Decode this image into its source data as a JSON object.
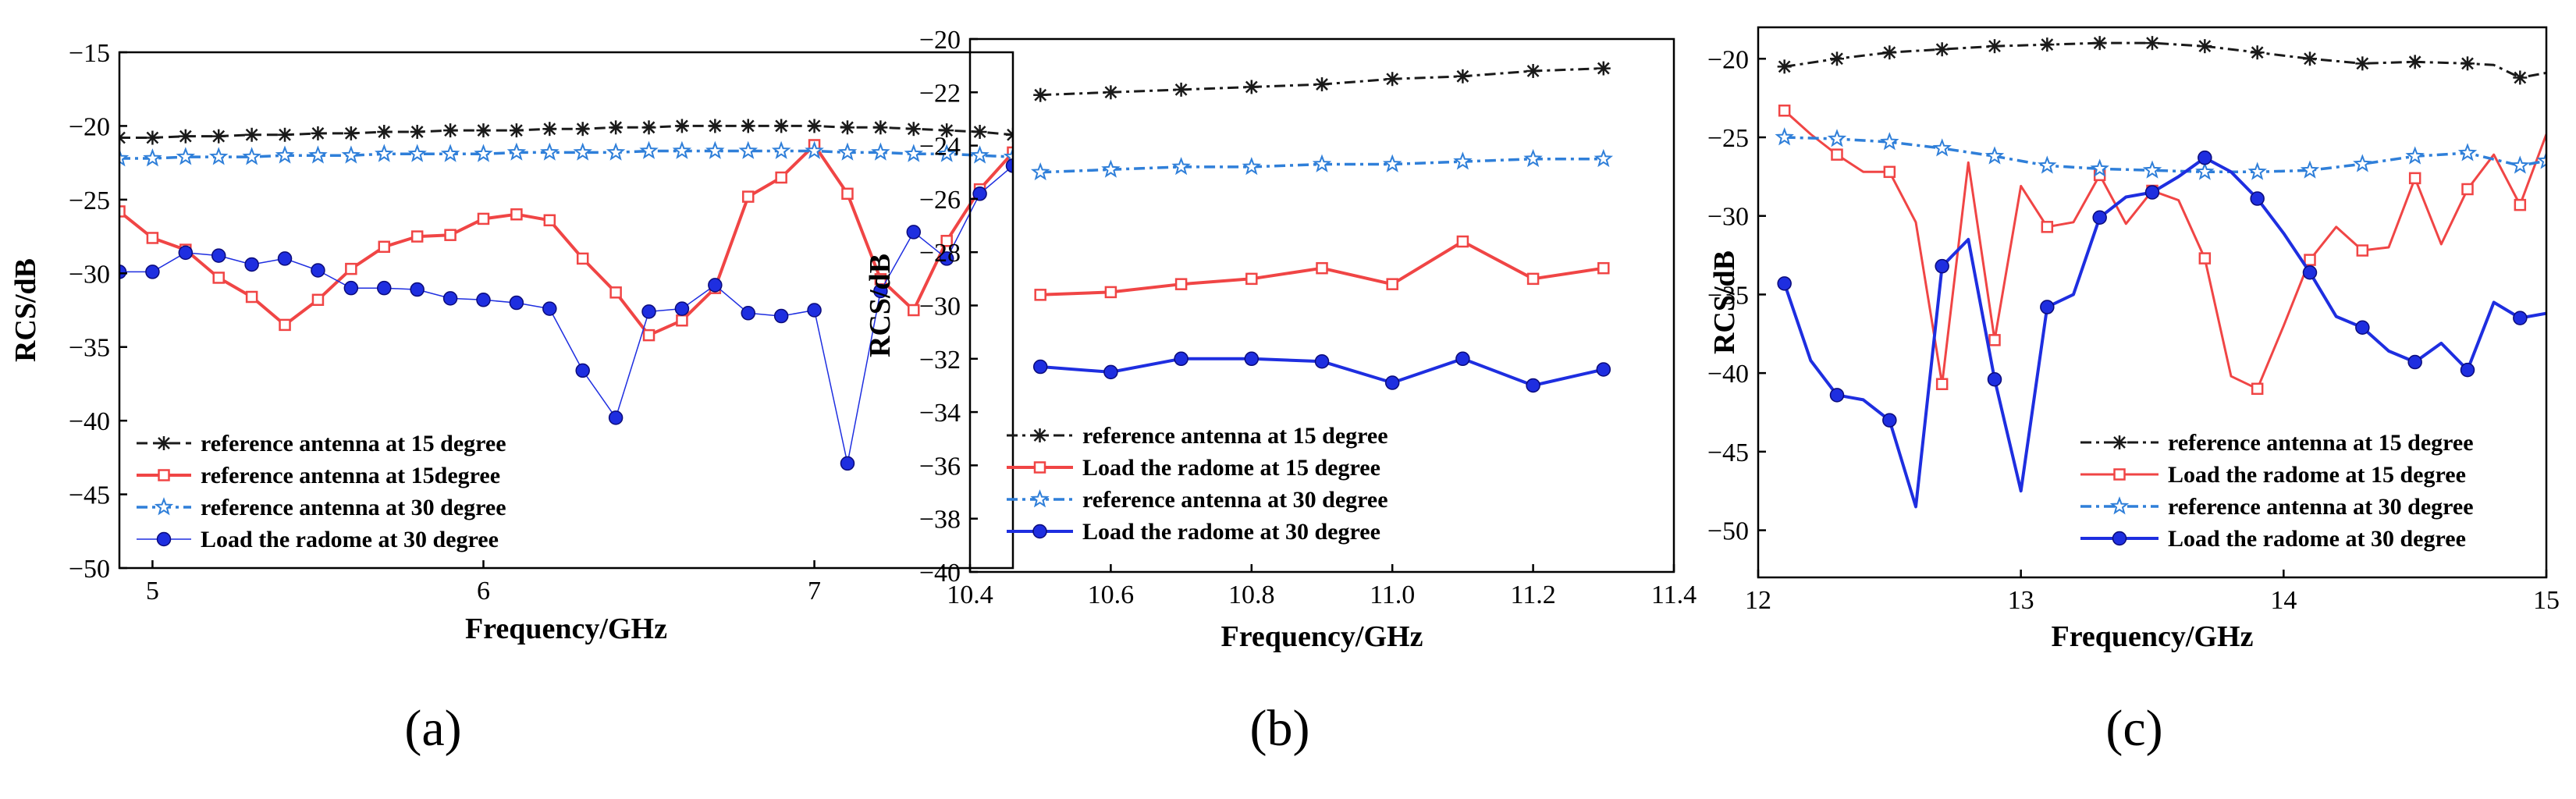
{
  "figure": {
    "panel_labels": [
      "(a)",
      "(b)",
      "(c)"
    ],
    "colors": {
      "ref15": "#1a1a1a",
      "load15": "#f04545",
      "ref30": "#2f7fd9",
      "load30": "#1e2ee0"
    }
  },
  "chart_data": [
    {
      "type": "line",
      "panel": "(a)",
      "xlabel": "Frequency/GHz",
      "ylabel": "RCS/dB",
      "xlim": [
        4.9,
        7.6
      ],
      "ylim": [
        -50,
        -15
      ],
      "xticks": [
        5,
        6,
        7
      ],
      "xtick_labels": [
        "5",
        "6",
        "7"
      ],
      "yticks": [
        -50,
        -45,
        -40,
        -35,
        -30,
        -25,
        -20,
        -15
      ],
      "ytick_labels": [
        "−50",
        "−45",
        "−40",
        "−35",
        "−30",
        "−25",
        "−20",
        "−15"
      ],
      "legend_position": "bottom-left",
      "series": [
        {
          "name": "reference antenna at 15 degree",
          "style": "ref15",
          "x": [
            4.9,
            5.0,
            5.1,
            5.2,
            5.3,
            5.4,
            5.5,
            5.6,
            5.7,
            5.8,
            5.9,
            6.0,
            6.1,
            6.2,
            6.3,
            6.4,
            6.5,
            6.6,
            6.7,
            6.8,
            6.9,
            7.0,
            7.1,
            7.2,
            7.3,
            7.4,
            7.5,
            7.6
          ],
          "y": [
            -20.8,
            -20.8,
            -20.7,
            -20.7,
            -20.6,
            -20.6,
            -20.5,
            -20.5,
            -20.4,
            -20.4,
            -20.3,
            -20.3,
            -20.3,
            -20.2,
            -20.2,
            -20.1,
            -20.1,
            -20.0,
            -20.0,
            -20.0,
            -20.0,
            -20.0,
            -20.1,
            -20.1,
            -20.2,
            -20.3,
            -20.4,
            -20.6
          ]
        },
        {
          "name": "reference antenna at 15degree",
          "style": "load15",
          "x": [
            4.9,
            5.0,
            5.1,
            5.2,
            5.3,
            5.4,
            5.5,
            5.6,
            5.7,
            5.8,
            5.9,
            6.0,
            6.1,
            6.2,
            6.3,
            6.4,
            6.5,
            6.6,
            6.7,
            6.8,
            6.9,
            7.0,
            7.1,
            7.2,
            7.3,
            7.4,
            7.5,
            7.6
          ],
          "y": [
            -25.8,
            -27.6,
            -28.4,
            -30.3,
            -31.6,
            -33.5,
            -31.8,
            -29.7,
            -28.2,
            -27.5,
            -27.4,
            -26.3,
            -26.0,
            -26.4,
            -29.0,
            -31.3,
            -34.2,
            -33.2,
            -31.0,
            -24.8,
            -23.5,
            -21.3,
            -24.6,
            -30.4,
            -32.5,
            -27.8,
            -24.3,
            -21.8
          ]
        },
        {
          "name": "reference antenna at 30 degree",
          "style": "ref30",
          "x": [
            4.9,
            5.0,
            5.1,
            5.2,
            5.3,
            5.4,
            5.5,
            5.6,
            5.7,
            5.8,
            5.9,
            6.0,
            6.1,
            6.2,
            6.3,
            6.4,
            6.5,
            6.6,
            6.7,
            6.8,
            6.9,
            7.0,
            7.1,
            7.2,
            7.3,
            7.4,
            7.5,
            7.6
          ],
          "y": [
            -22.2,
            -22.2,
            -22.1,
            -22.1,
            -22.1,
            -22.0,
            -22.0,
            -22.0,
            -21.9,
            -21.9,
            -21.9,
            -21.9,
            -21.8,
            -21.8,
            -21.8,
            -21.8,
            -21.7,
            -21.7,
            -21.7,
            -21.7,
            -21.7,
            -21.7,
            -21.8,
            -21.8,
            -21.9,
            -21.9,
            -22.0,
            -22.1
          ]
        },
        {
          "name": "Load the radome at 30 degree",
          "style": "load30",
          "x": [
            4.9,
            5.0,
            5.1,
            5.2,
            5.3,
            5.4,
            5.5,
            5.6,
            5.7,
            5.8,
            5.9,
            6.0,
            6.1,
            6.2,
            6.3,
            6.4,
            6.5,
            6.6,
            6.7,
            6.8,
            6.9,
            7.0,
            7.1,
            7.2,
            7.3,
            7.4,
            7.5,
            7.6
          ],
          "y": [
            -29.9,
            -29.9,
            -28.6,
            -28.8,
            -29.4,
            -29.0,
            -29.8,
            -31.0,
            -31.0,
            -31.1,
            -31.7,
            -31.8,
            -32.0,
            -32.4,
            -36.6,
            -39.8,
            -32.6,
            -32.4,
            -30.8,
            -32.7,
            -32.9,
            -32.5,
            -42.9,
            -31.2,
            -27.2,
            -29.0,
            -24.6,
            -22.7
          ]
        }
      ]
    },
    {
      "type": "line",
      "panel": "(b)",
      "xlabel": "Frequency/GHz",
      "ylabel": "RCS/dB",
      "xlim": [
        10.4,
        11.4
      ],
      "ylim": [
        -40,
        -20
      ],
      "xticks": [
        10.4,
        10.6,
        10.8,
        11.0,
        11.2,
        11.4
      ],
      "xtick_labels": [
        "10.4",
        "10.6",
        "10.8",
        "11.0",
        "11.2",
        "11.4"
      ],
      "yticks": [
        -40,
        -38,
        -36,
        -34,
        -32,
        -30,
        -28,
        -26,
        -24,
        -22,
        -20
      ],
      "ytick_labels": [
        "−40",
        "−38",
        "−36",
        "−34",
        "−32",
        "−30",
        "−28",
        "−26",
        "−24",
        "−22",
        "−20"
      ],
      "legend_position": "bottom-left",
      "series": [
        {
          "name": "reference antenna at 15 degree",
          "style": "ref15",
          "x": [
            10.5,
            10.6,
            10.7,
            10.8,
            10.9,
            11.0,
            11.1,
            11.2,
            11.3
          ],
          "y": [
            -22.1,
            -22.0,
            -21.9,
            -21.8,
            -21.7,
            -21.5,
            -21.4,
            -21.2,
            -21.1
          ]
        },
        {
          "name": "Load the radome at 15 degree",
          "style": "load15",
          "x": [
            10.5,
            10.6,
            10.7,
            10.8,
            10.9,
            11.0,
            11.1,
            11.2,
            11.3
          ],
          "y": [
            -29.6,
            -29.5,
            -29.2,
            -29.0,
            -28.6,
            -29.2,
            -27.6,
            -29.0,
            -28.6
          ]
        },
        {
          "name": "reference antenna at 30 degree",
          "style": "ref30",
          "x": [
            10.5,
            10.6,
            10.7,
            10.8,
            10.9,
            11.0,
            11.1,
            11.2,
            11.3
          ],
          "y": [
            -25.0,
            -24.9,
            -24.8,
            -24.8,
            -24.7,
            -24.7,
            -24.6,
            -24.5,
            -24.5
          ]
        },
        {
          "name": "Load the radome at 30 degree",
          "style": "load30",
          "x": [
            10.5,
            10.6,
            10.7,
            10.8,
            10.9,
            11.0,
            11.1,
            11.2,
            11.3
          ],
          "y": [
            -32.3,
            -32.5,
            -32.0,
            -32.0,
            -32.1,
            -32.9,
            -32.0,
            -33.0,
            -32.4
          ]
        }
      ]
    },
    {
      "type": "line",
      "panel": "(c)",
      "xlabel": "Frequency/GHz",
      "ylabel": "RCS/dB",
      "xlim": [
        12,
        15
      ],
      "ylim": [
        -53,
        -18
      ],
      "xticks": [
        12,
        13,
        14,
        15
      ],
      "xtick_labels": [
        "12",
        "13",
        "14",
        "15"
      ],
      "yticks": [
        -50,
        -45,
        -40,
        -35,
        -30,
        -25,
        -20
      ],
      "ytick_labels": [
        "−50",
        "−45",
        "−40",
        "−35",
        "−30",
        "−25",
        "−20"
      ],
      "legend_position": "bottom-right",
      "series": [
        {
          "name": "reference antenna at 15 degree",
          "style": "ref15",
          "x": [
            12.1,
            12.3,
            12.5,
            12.7,
            12.9,
            13.1,
            13.3,
            13.5,
            13.7,
            13.9,
            14.1,
            14.3,
            14.5,
            14.7,
            14.8,
            14.9,
            15.0
          ],
          "y": [
            -20.5,
            -20.0,
            -19.6,
            -19.4,
            -19.2,
            -19.1,
            -19.0,
            -19.0,
            -19.2,
            -19.6,
            -20.0,
            -20.3,
            -20.2,
            -20.3,
            -20.4,
            -21.2,
            -20.9
          ],
          "markers": [
            true,
            true,
            true,
            true,
            true,
            true,
            true,
            true,
            true,
            true,
            true,
            true,
            true,
            true,
            false,
            true,
            false
          ]
        },
        {
          "name": "Load the radome at 15 degree",
          "style": "load15",
          "x": [
            12.1,
            12.2,
            12.3,
            12.4,
            12.5,
            12.6,
            12.7,
            12.8,
            12.9,
            13.0,
            13.1,
            13.2,
            13.3,
            13.4,
            13.5,
            13.6,
            13.7,
            13.8,
            13.9,
            14.0,
            14.1,
            14.2,
            14.3,
            14.4,
            14.5,
            14.6,
            14.7,
            14.8,
            14.9,
            15.0
          ],
          "y": [
            -23.3,
            -24.8,
            -26.1,
            -27.2,
            -27.2,
            -30.4,
            -40.7,
            -26.6,
            -37.9,
            -28.1,
            -30.7,
            -30.4,
            -27.4,
            -30.5,
            -28.4,
            -29.0,
            -32.7,
            -40.2,
            -41.0,
            -37.0,
            -32.8,
            -30.7,
            -32.2,
            -32.0,
            -27.6,
            -31.8,
            -28.3,
            -26.1,
            -29.3,
            -24.8
          ],
          "markers": [
            true,
            false,
            true,
            false,
            true,
            false,
            true,
            false,
            true,
            false,
            true,
            false,
            true,
            false,
            true,
            false,
            true,
            false,
            true,
            false,
            true,
            false,
            true,
            false,
            true,
            false,
            true,
            false,
            true,
            false
          ]
        },
        {
          "name": "reference antenna at 30 degree",
          "style": "ref30",
          "x": [
            12.1,
            12.3,
            12.5,
            12.7,
            12.9,
            13.1,
            13.3,
            13.5,
            13.7,
            13.9,
            14.1,
            14.3,
            14.5,
            14.7,
            14.9,
            15.0
          ],
          "y": [
            -25.0,
            -25.1,
            -25.3,
            -25.7,
            -26.2,
            -26.8,
            -27.0,
            -27.1,
            -27.2,
            -27.2,
            -27.1,
            -26.7,
            -26.2,
            -26.0,
            -26.8,
            -26.5
          ]
        },
        {
          "name": "Load the radome at 30 degree",
          "style": "load30",
          "x": [
            12.1,
            12.2,
            12.3,
            12.4,
            12.5,
            12.6,
            12.7,
            12.8,
            12.9,
            13.0,
            13.1,
            13.2,
            13.3,
            13.4,
            13.5,
            13.6,
            13.7,
            13.8,
            13.9,
            14.0,
            14.1,
            14.2,
            14.3,
            14.4,
            14.5,
            14.6,
            14.7,
            14.8,
            14.9,
            15.0
          ],
          "y": [
            -34.3,
            -39.2,
            -41.4,
            -41.7,
            -43.0,
            -48.5,
            -33.2,
            -31.5,
            -40.4,
            -47.5,
            -35.8,
            -35.0,
            -30.1,
            -28.8,
            -28.5,
            -27.5,
            -26.3,
            -27.2,
            -28.9,
            -31.1,
            -33.6,
            -36.4,
            -37.1,
            -38.6,
            -39.3,
            -38.1,
            -39.8,
            -35.5,
            -36.5,
            -36.2
          ],
          "markers": [
            true,
            false,
            true,
            false,
            true,
            false,
            true,
            false,
            true,
            false,
            true,
            false,
            true,
            false,
            true,
            false,
            true,
            false,
            true,
            false,
            true,
            false,
            true,
            false,
            true,
            false,
            true,
            false,
            true,
            false
          ]
        }
      ]
    }
  ]
}
